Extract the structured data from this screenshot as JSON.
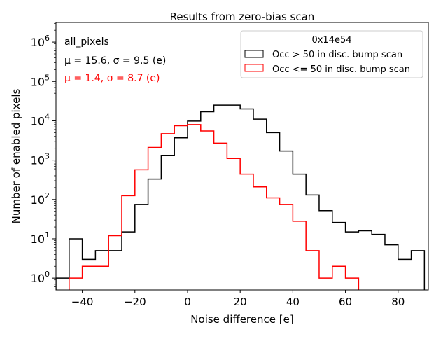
{
  "chart_data": {
    "type": "histogram-step",
    "title": "Results from zero-bias scan",
    "xlabel": "Noise difference [e]",
    "ylabel": "Number of enabled pixels",
    "xlim": [
      -50,
      91.5
    ],
    "ylim_log10": [
      -0.3,
      6.5
    ],
    "yscale": "log",
    "xticks": [
      -40,
      -20,
      0,
      20,
      40,
      60,
      80
    ],
    "xtick_labels": [
      "−40",
      "−20",
      "0",
      "20",
      "40",
      "60",
      "80"
    ],
    "yticks": [
      0,
      1,
      2,
      3,
      4,
      5,
      6
    ],
    "bin_width": 5,
    "annotations": [
      {
        "text": "all_pixels",
        "color": "#000000"
      },
      {
        "text": "μ = 15.6, σ = 9.5 (e)",
        "color": "#000000"
      },
      {
        "text": "μ = 1.4, σ = 8.7 (e)",
        "color": "#ff0000"
      }
    ],
    "legend": {
      "title": "0x14e54",
      "position": "top-right",
      "entries": [
        "Occ > 50 in disc. bump scan",
        "Occ <= 50 in disc. bump scan"
      ]
    },
    "series": [
      {
        "name": "Occ > 50 in disc. bump scan",
        "color": "#000000",
        "bin_starts": [
          -50,
          -45,
          -40,
          -35,
          -30,
          -25,
          -20,
          -15,
          -10,
          -5,
          0,
          5,
          10,
          15,
          20,
          25,
          30,
          35,
          40,
          45,
          50,
          55,
          60,
          65,
          70,
          75,
          80,
          85
        ],
        "values": [
          1,
          10,
          3,
          5,
          5,
          15,
          75,
          330,
          1300,
          3700,
          9800,
          17000,
          25000,
          25000,
          20000,
          11000,
          5000,
          1700,
          440,
          130,
          52,
          26,
          15,
          16,
          13,
          7,
          3,
          5
        ]
      },
      {
        "name": "Occ <= 50 in disc. bump scan",
        "color": "#ff0000",
        "bin_starts": [
          -45,
          -40,
          -35,
          -30,
          -25,
          -20,
          -15,
          -10,
          -5,
          0,
          5,
          10,
          15,
          20,
          25,
          30,
          35,
          40,
          45,
          50,
          55,
          60
        ],
        "values": [
          1,
          2,
          2,
          12,
          125,
          570,
          2100,
          4700,
          7500,
          8000,
          5500,
          2700,
          1100,
          440,
          210,
          110,
          75,
          28,
          5,
          1,
          2,
          1
        ]
      }
    ]
  }
}
